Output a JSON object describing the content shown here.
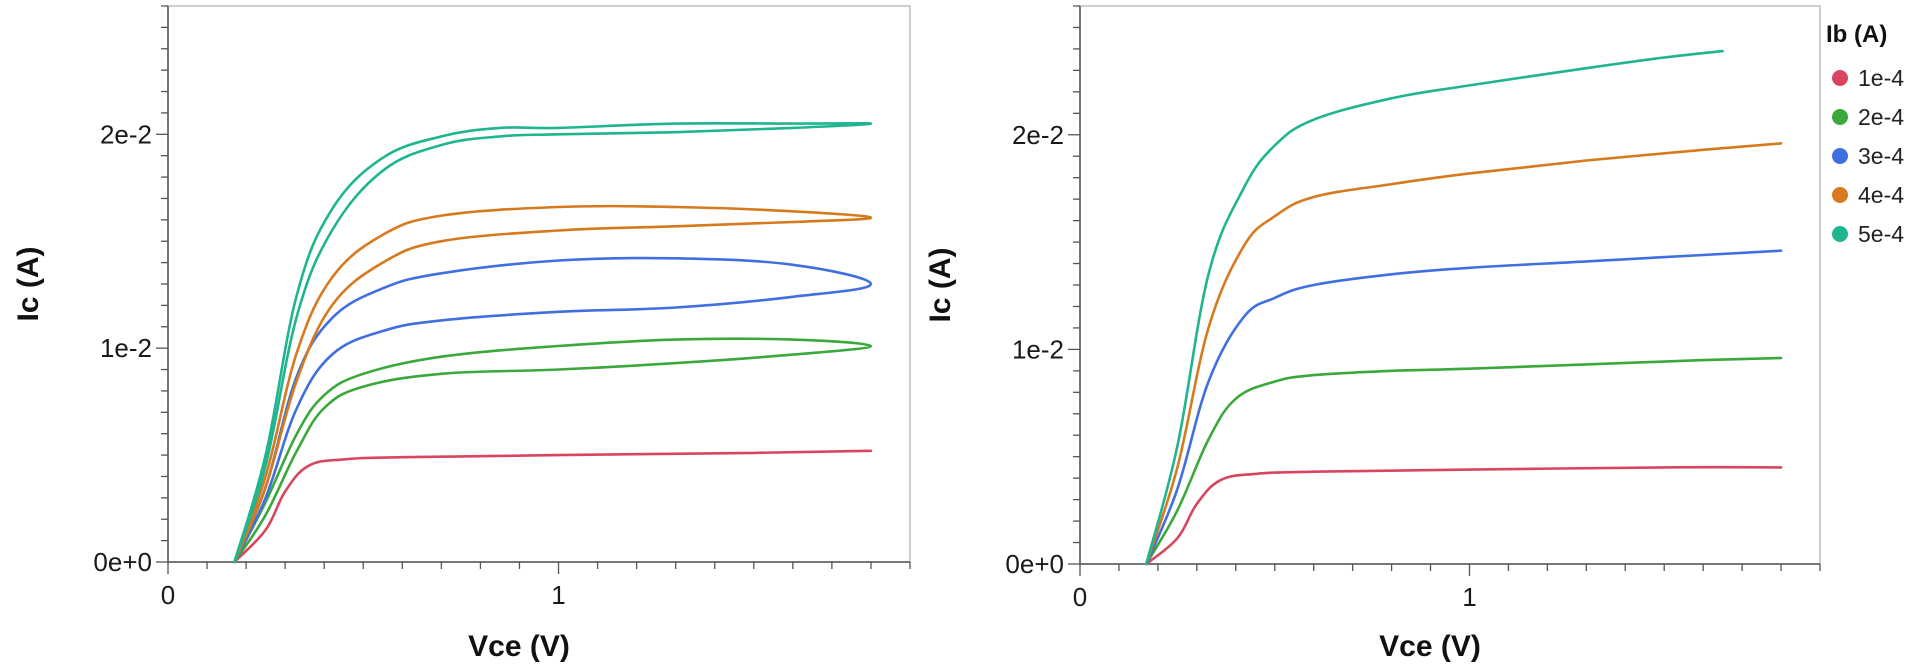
{
  "legend": {
    "title": "Ib (A)",
    "items": [
      {
        "label": "1e-4",
        "color": "#d9455f"
      },
      {
        "label": "2e-4",
        "color": "#3aa83a"
      },
      {
        "label": "3e-4",
        "color": "#3f6fe0"
      },
      {
        "label": "4e-4",
        "color": "#d77a1e"
      },
      {
        "label": "5e-4",
        "color": "#1fb58f"
      }
    ]
  },
  "chart_data": [
    {
      "type": "line",
      "xlabel": "Vce (V)",
      "ylabel": "Ic (A)",
      "xlim": [
        0,
        1.9
      ],
      "ylim": [
        0,
        0.026
      ],
      "x_ticks": [
        0,
        1
      ],
      "x_tick_labels": [
        "0",
        "1"
      ],
      "y_ticks": [
        0,
        0.01,
        0.02
      ],
      "y_tick_labels": [
        "0e+0",
        "1e-2",
        "2e-2"
      ],
      "grid": false,
      "series": [
        {
          "name": "1e-4",
          "color": "#d9455f",
          "x": [
            0.17,
            0.25,
            0.3,
            0.36,
            0.45,
            0.6,
            1.0,
            1.5,
            1.8
          ],
          "y": [
            0,
            0.0015,
            0.0033,
            0.0045,
            0.0048,
            0.0049,
            0.005,
            0.0051,
            0.0052
          ]
        },
        {
          "name": "2e-4",
          "color": "#3aa83a",
          "x": [
            0.17,
            0.25,
            0.33,
            0.4,
            0.5,
            0.7,
            1.0,
            1.3,
            1.6,
            1.8,
            1.6,
            1.3,
            1.0,
            0.7,
            0.5,
            0.4,
            0.33,
            0.25,
            0.17
          ],
          "y": [
            0,
            0.0022,
            0.0052,
            0.0072,
            0.0082,
            0.0088,
            0.009,
            0.0093,
            0.0097,
            0.0101,
            0.0104,
            0.0104,
            0.0101,
            0.0096,
            0.0088,
            0.0078,
            0.006,
            0.0028,
            0
          ]
        },
        {
          "name": "3e-4",
          "color": "#3f6fe0",
          "x": [
            0.17,
            0.25,
            0.33,
            0.42,
            0.55,
            0.7,
            1.0,
            1.3,
            1.6,
            1.8,
            1.6,
            1.3,
            1.0,
            0.7,
            0.55,
            0.42,
            0.33,
            0.25,
            0.17
          ],
          "y": [
            0,
            0.003,
            0.0072,
            0.0097,
            0.0108,
            0.0113,
            0.0117,
            0.0119,
            0.0124,
            0.013,
            0.0139,
            0.0142,
            0.0141,
            0.0135,
            0.0128,
            0.0114,
            0.0087,
            0.0035,
            0
          ]
        },
        {
          "name": "4e-4",
          "color": "#d77a1e",
          "x": [
            0.17,
            0.25,
            0.33,
            0.42,
            0.55,
            0.7,
            1.0,
            1.3,
            1.6,
            1.8,
            1.6,
            1.3,
            1.0,
            0.7,
            0.55,
            0.42,
            0.33,
            0.25,
            0.17
          ],
          "y": [
            0,
            0.0035,
            0.0085,
            0.012,
            0.014,
            0.015,
            0.0155,
            0.0157,
            0.0159,
            0.0161,
            0.0164,
            0.0166,
            0.0166,
            0.0162,
            0.0153,
            0.0133,
            0.0098,
            0.004,
            0
          ]
        },
        {
          "name": "5e-4",
          "color": "#1fb58f",
          "x": [
            0.17,
            0.25,
            0.33,
            0.42,
            0.55,
            0.7,
            0.85,
            1.0,
            1.3,
            1.6,
            1.8,
            1.6,
            1.3,
            1.0,
            0.85,
            0.7,
            0.55,
            0.42,
            0.33,
            0.25,
            0.17
          ],
          "y": [
            0,
            0.0045,
            0.0115,
            0.0155,
            0.0183,
            0.0195,
            0.0199,
            0.02,
            0.0201,
            0.0203,
            0.0205,
            0.0205,
            0.0205,
            0.0203,
            0.0203,
            0.0199,
            0.0189,
            0.0165,
            0.0125,
            0.005,
            0
          ]
        }
      ]
    },
    {
      "type": "line",
      "xlabel": "Vce (V)",
      "ylabel": "Ic (A)",
      "xlim": [
        0,
        1.9
      ],
      "ylim": [
        0,
        0.026
      ],
      "x_ticks": [
        0,
        1
      ],
      "x_tick_labels": [
        "0",
        "1"
      ],
      "y_ticks": [
        0,
        0.01,
        0.02
      ],
      "y_tick_labels": [
        "0e+0",
        "1e-2",
        "2e-2"
      ],
      "grid": false,
      "series": [
        {
          "name": "1e-4",
          "color": "#d9455f",
          "x": [
            0.17,
            0.25,
            0.3,
            0.36,
            0.45,
            0.6,
            1.0,
            1.5,
            1.8
          ],
          "y": [
            0,
            0.0012,
            0.0028,
            0.0039,
            0.0042,
            0.0043,
            0.0044,
            0.0045,
            0.0045
          ]
        },
        {
          "name": "2e-4",
          "color": "#3aa83a",
          "x": [
            0.17,
            0.25,
            0.33,
            0.4,
            0.5,
            0.6,
            0.8,
            1.0,
            1.3,
            1.6,
            1.8
          ],
          "y": [
            0,
            0.0025,
            0.0058,
            0.0077,
            0.0085,
            0.0088,
            0.009,
            0.0091,
            0.0093,
            0.0095,
            0.0096
          ]
        },
        {
          "name": "3e-4",
          "color": "#3f6fe0",
          "x": [
            0.17,
            0.25,
            0.33,
            0.42,
            0.5,
            0.6,
            0.8,
            1.0,
            1.3,
            1.6,
            1.8
          ],
          "y": [
            0,
            0.0035,
            0.0085,
            0.0115,
            0.0124,
            0.013,
            0.0135,
            0.0138,
            0.0141,
            0.0144,
            0.0146
          ]
        },
        {
          "name": "4e-4",
          "color": "#d77a1e",
          "x": [
            0.17,
            0.25,
            0.33,
            0.42,
            0.5,
            0.6,
            0.8,
            1.0,
            1.3,
            1.6,
            1.8
          ],
          "y": [
            0,
            0.0045,
            0.011,
            0.0148,
            0.0162,
            0.0171,
            0.0177,
            0.0182,
            0.0188,
            0.0193,
            0.0196
          ]
        },
        {
          "name": "5e-4",
          "color": "#1fb58f",
          "x": [
            0.17,
            0.25,
            0.33,
            0.42,
            0.5,
            0.6,
            0.8,
            1.0,
            1.3,
            1.5,
            1.65
          ],
          "y": [
            0,
            0.0055,
            0.0135,
            0.0175,
            0.0195,
            0.0207,
            0.0217,
            0.0223,
            0.0231,
            0.0236,
            0.0239
          ]
        }
      ]
    }
  ]
}
